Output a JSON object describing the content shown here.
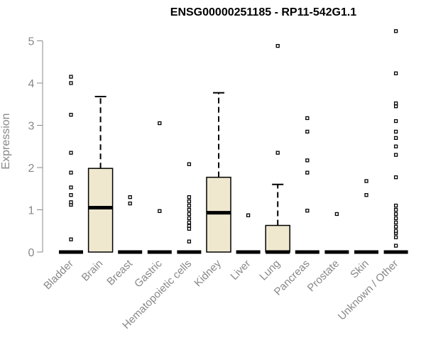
{
  "chart_data": {
    "type": "boxplot",
    "title": "ENSG00000251185 - RP11-542G1.1",
    "xlabel": "",
    "ylabel": "Expression",
    "ylim": [
      0,
      5.3
    ],
    "yticks": [
      0,
      1,
      2,
      3,
      4,
      5
    ],
    "grid": false,
    "box_fill": "#efe8cf",
    "categories": [
      "Bladder",
      "Brain",
      "Breast",
      "Gastric",
      "Hematopoietic cells",
      "Kidney",
      "Liver",
      "Lung",
      "Pancreas",
      "Prostate",
      "Skin",
      "Unknown / Other"
    ],
    "boxes": [
      {
        "q1": 0,
        "median": 0,
        "q3": 0,
        "whisker_low": 0,
        "whisker_high": 0,
        "outliers": [
          0.3,
          1.12,
          1.18,
          1.35,
          1.53,
          1.88,
          2.35,
          3.25,
          4.0,
          4.15
        ]
      },
      {
        "q1": 0,
        "median": 1.05,
        "q3": 1.98,
        "whisker_low": 0,
        "whisker_high": 3.68,
        "outliers": []
      },
      {
        "q1": 0,
        "median": 0,
        "q3": 0,
        "whisker_low": 0,
        "whisker_high": 0,
        "outliers": [
          1.15,
          1.3
        ]
      },
      {
        "q1": 0,
        "median": 0,
        "q3": 0,
        "whisker_low": 0,
        "whisker_high": 0,
        "outliers": [
          0.97,
          3.05
        ]
      },
      {
        "q1": 0,
        "median": 0,
        "q3": 0,
        "whisker_low": 0,
        "whisker_high": 0,
        "outliers": [
          0.25,
          0.55,
          0.62,
          0.7,
          0.8,
          0.9,
          1.0,
          1.1,
          1.2,
          1.3,
          2.08
        ]
      },
      {
        "q1": 0,
        "median": 0.93,
        "q3": 1.77,
        "whisker_low": 0,
        "whisker_high": 3.77,
        "outliers": []
      },
      {
        "q1": 0,
        "median": 0,
        "q3": 0,
        "whisker_low": 0,
        "whisker_high": 0,
        "outliers": [
          0.87
        ]
      },
      {
        "q1": 0,
        "median": 0,
        "q3": 0.63,
        "whisker_low": 0,
        "whisker_high": 1.6,
        "outliers": [
          2.35,
          4.88
        ]
      },
      {
        "q1": 0,
        "median": 0,
        "q3": 0,
        "whisker_low": 0,
        "whisker_high": 0,
        "outliers": [
          0.98,
          1.88,
          2.17,
          2.85,
          3.17
        ]
      },
      {
        "q1": 0,
        "median": 0,
        "q3": 0,
        "whisker_low": 0,
        "whisker_high": 0,
        "outliers": [
          0.9
        ]
      },
      {
        "q1": 0,
        "median": 0,
        "q3": 0,
        "whisker_low": 0,
        "whisker_high": 0,
        "outliers": [
          1.35,
          1.68
        ]
      },
      {
        "q1": 0,
        "median": 0,
        "q3": 0,
        "whisker_low": 0,
        "whisker_high": 0,
        "outliers": [
          0.15,
          0.35,
          0.45,
          0.5,
          0.6,
          0.7,
          0.8,
          0.9,
          1.0,
          1.1,
          1.77,
          2.3,
          2.5,
          2.7,
          2.85,
          3.1,
          3.45,
          3.52,
          4.23,
          5.23
        ]
      }
    ]
  }
}
